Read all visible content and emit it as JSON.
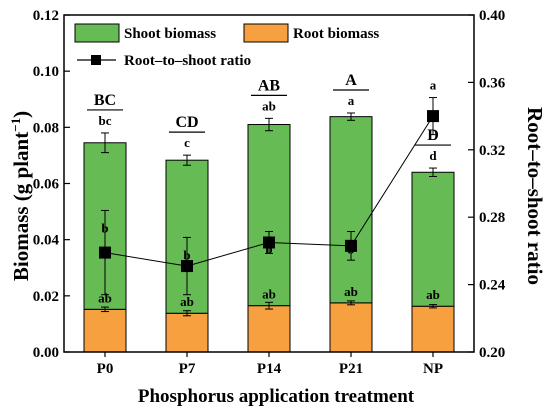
{
  "chart_data": {
    "type": "bar",
    "stacked": true,
    "secondary_type": "line",
    "categories": [
      "P0",
      "P7",
      "P14",
      "P21",
      "NP"
    ],
    "series": [
      {
        "name": "Root biomass",
        "color": "#F7A040",
        "values": [
          0.0152,
          0.0138,
          0.0165,
          0.0175,
          0.0163
        ],
        "errors": [
          0.0008,
          0.0009,
          0.0012,
          0.0007,
          0.0006
        ],
        "labels": [
          "ab",
          "ab",
          "ab",
          "ab",
          "ab"
        ]
      },
      {
        "name": "Shoot biomass",
        "color": "#66BB55",
        "values": [
          0.0593,
          0.0545,
          0.0645,
          0.0663,
          0.0477
        ],
        "errors": [
          0.0035,
          0.0018,
          0.0022,
          0.0013,
          0.0015
        ],
        "labels": [
          "b",
          "b",
          "b",
          "b",
          "a"
        ]
      }
    ],
    "total_labels": [
      "bc",
      "c",
      "ab",
      "a",
      "d"
    ],
    "group_letters": [
      "BC",
      "CD",
      "AB",
      "A",
      "D"
    ],
    "line_series": {
      "name": "Root–to–shoot ratio",
      "color": "#000000",
      "values": [
        0.259,
        0.251,
        0.265,
        0.263,
        0.34
      ],
      "errors": [
        0.025,
        0.017,
        0.0065,
        0.0085,
        0.011
      ],
      "labels": [
        "b",
        "b",
        "b",
        "b",
        "a"
      ]
    },
    "xlabel": "Phosphorus application treatment",
    "ylabel": "Biomass (g plant",
    "ylabel_sup": "−1",
    "ylabel_close": ")",
    "y2label": "Root–to–shoot ratio",
    "ylim": [
      0,
      0.12
    ],
    "y_ticks": [
      "0.00",
      "0.02",
      "0.04",
      "0.06",
      "0.08",
      "0.10",
      "0.12"
    ],
    "y2lim": [
      0.2,
      0.4
    ],
    "y2_ticks": [
      "0.20",
      "0.24",
      "0.28",
      "0.32",
      "0.36",
      "0.40"
    ],
    "legend": {
      "position": "top-left"
    },
    "grid": false
  }
}
